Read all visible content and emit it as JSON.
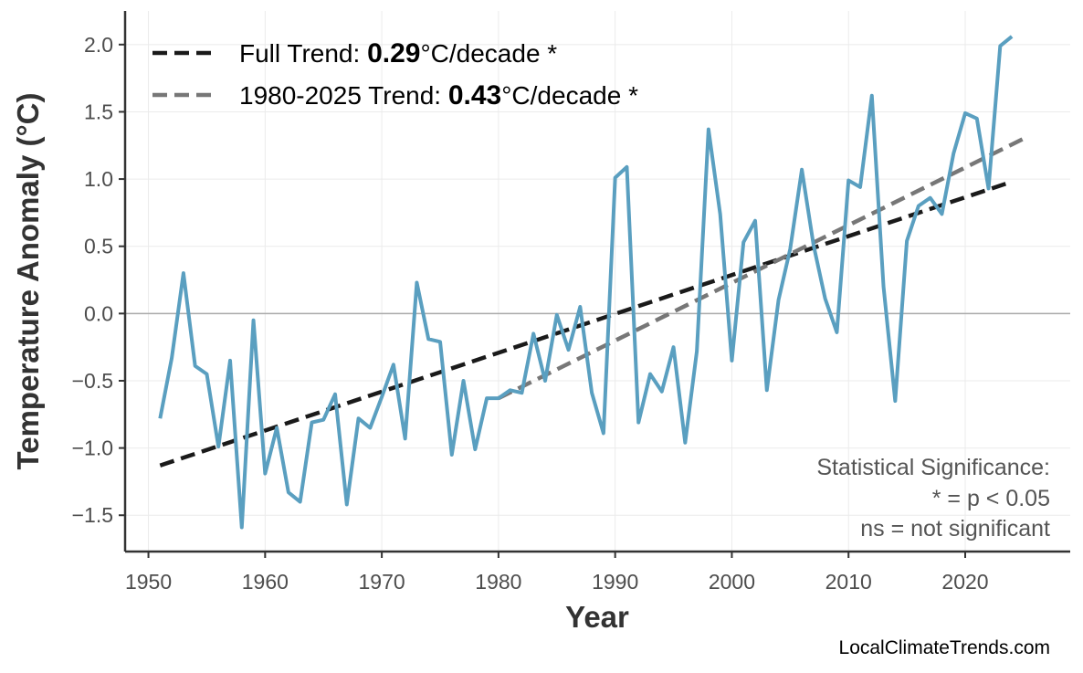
{
  "chart_data": {
    "type": "line",
    "title": "",
    "xlabel": "Year",
    "ylabel": "Temperature Anomaly (°C)",
    "xlim": [
      1948,
      2029
    ],
    "ylim": [
      -1.77,
      2.25
    ],
    "xticks": [
      1950,
      1960,
      1970,
      1980,
      1990,
      2000,
      2010,
      2020
    ],
    "xtick_labels": [
      "1950",
      "1960",
      "1970",
      "1980",
      "1990",
      "2000",
      "2010",
      "2020"
    ],
    "yticks": [
      -1.5,
      -1.0,
      -0.5,
      0.0,
      0.5,
      1.0,
      1.5,
      2.0
    ],
    "ytick_labels": [
      "−1.5",
      "−1.0",
      "−0.5",
      "0.0",
      "0.5",
      "1.0",
      "1.5",
      "2.0"
    ],
    "grid": true,
    "zero_line": true,
    "series": [
      {
        "color": "#5A9FC0",
        "x": [
          1951,
          1952,
          1953,
          1954,
          1955,
          1956,
          1957,
          1958,
          1959,
          1960,
          1961,
          1962,
          1963,
          1964,
          1965,
          1966,
          1967,
          1968,
          1969,
          1970,
          1971,
          1972,
          1973,
          1974,
          1975,
          1976,
          1977,
          1978,
          1979,
          1980,
          1981,
          1982,
          1983,
          1984,
          1985,
          1986,
          1987,
          1988,
          1989,
          1990,
          1991,
          1992,
          1993,
          1994,
          1995,
          1996,
          1997,
          1998,
          1999,
          2000,
          2001,
          2002,
          2003,
          2004,
          2005,
          2006,
          2007,
          2008,
          2009,
          2010,
          2011,
          2012,
          2013,
          2014,
          2015,
          2016,
          2017,
          2018,
          2019,
          2020,
          2021,
          2022,
          2023,
          2024
        ],
        "y": [
          -0.78,
          -0.33,
          0.3,
          -0.39,
          -0.45,
          -0.99,
          -0.35,
          -1.59,
          -0.05,
          -1.19,
          -0.85,
          -1.33,
          -1.4,
          -0.81,
          -0.79,
          -0.6,
          -1.42,
          -0.78,
          -0.85,
          -0.62,
          -0.38,
          -0.93,
          0.23,
          -0.19,
          -0.21,
          -1.05,
          -0.5,
          -1.01,
          -0.63,
          -0.63,
          -0.57,
          -0.59,
          -0.15,
          -0.5,
          -0.01,
          -0.27,
          0.05,
          -0.59,
          -0.89,
          1.01,
          1.09,
          -0.81,
          -0.45,
          -0.58,
          -0.25,
          -0.96,
          -0.28,
          1.37,
          0.74,
          -0.35,
          0.53,
          0.69,
          -0.57,
          0.1,
          0.48,
          1.07,
          0.51,
          0.11,
          -0.14,
          0.99,
          0.94,
          1.62,
          0.2,
          -0.65,
          0.54,
          0.8,
          0.86,
          0.74,
          1.19,
          1.49,
          1.45,
          0.93,
          1.99,
          2.06
        ]
      }
    ],
    "trends": [
      {
        "label_prefix": "Full Trend: ",
        "value": "0.29",
        "label_suffix": "°C/decade *",
        "color": "#1a1a1a",
        "x": [
          1951,
          2024
        ],
        "y": [
          -1.13,
          0.98
        ]
      },
      {
        "label_prefix": "1980-2025 Trend: ",
        "value": "0.43",
        "label_suffix": "°C/decade *",
        "color": "#777777",
        "x": [
          1980,
          2025
        ],
        "y": [
          -0.63,
          1.3
        ]
      }
    ],
    "legend_position": "top-left",
    "annotation": [
      "Statistical Significance:",
      "* = p < 0.05",
      "ns = not significant"
    ]
  },
  "watermark": "LocalClimateTrends.com"
}
